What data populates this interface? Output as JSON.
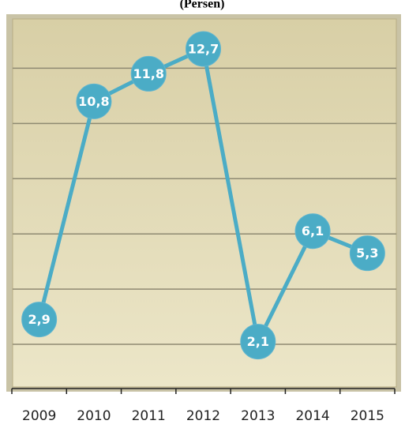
{
  "chart_data": {
    "type": "line",
    "title": "(Persen)",
    "categories": [
      "2009",
      "2010",
      "2011",
      "2012",
      "2013",
      "2014",
      "2015"
    ],
    "series": [
      {
        "color": "#4bacc6",
        "values": [
          2.9,
          10.8,
          11.8,
          12.7,
          2.1,
          6.1,
          5.3
        ],
        "value_labels": [
          "2,9",
          "10,8",
          "11,8",
          "12,7",
          "2,1",
          "6,1",
          "5,3"
        ]
      }
    ],
    "ylim": [
      0.4,
      13.9
    ],
    "yticks": [
      2,
      4,
      6,
      8,
      10,
      12
    ],
    "grid": true
  }
}
